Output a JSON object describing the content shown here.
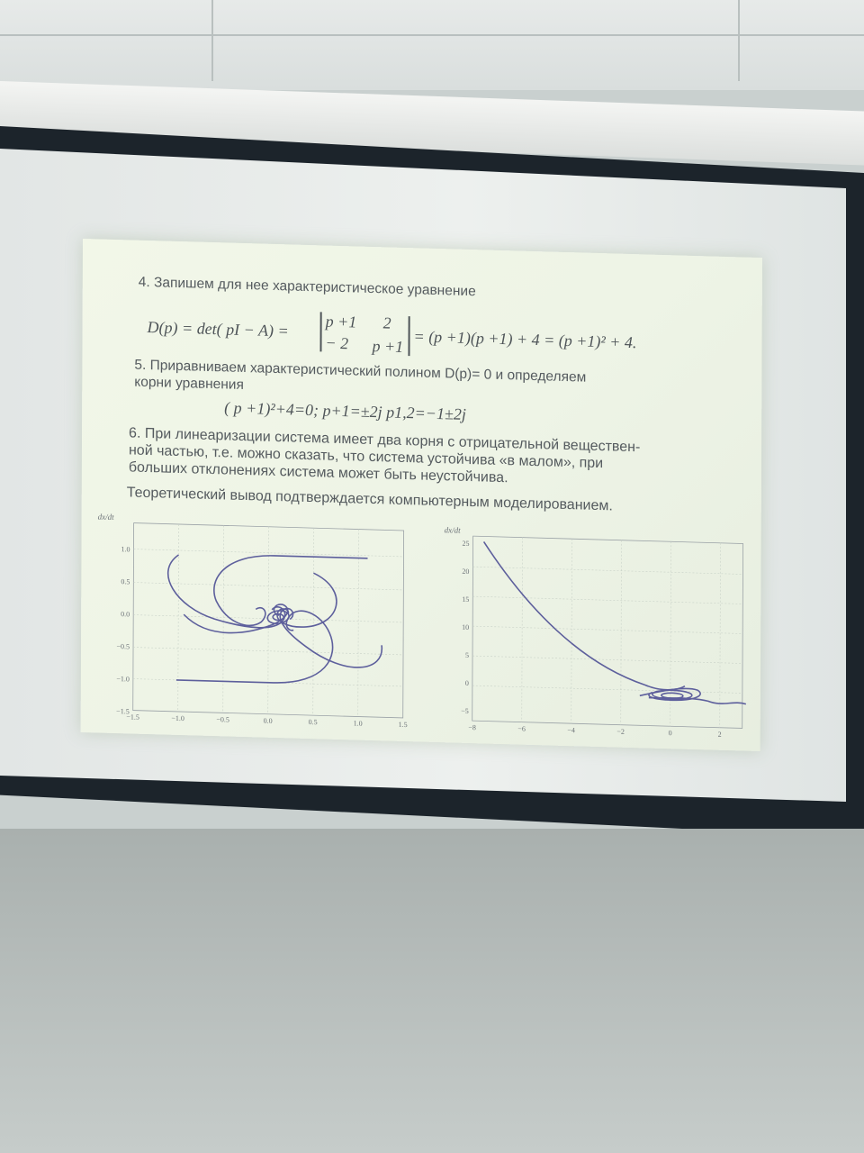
{
  "slide": {
    "heading_4": "4. Запишем для нее характеристическое уравнение",
    "formula_d": {
      "lhs": "D(p) = det( pI − A) =",
      "m11": "p +1",
      "m12": "2",
      "m21": "− 2",
      "m22": "p +1",
      "rhs": "= (p +1)(p +1) + 4 = (p +1)² + 4."
    },
    "text_5_line1": "5. Приравниваем характеристический полином D(p)= 0 и определяем",
    "text_5_line2": "корни уравнения",
    "equation_roots": "( p +1)²+4=0;  p+1=±2j   p1,2=−1±2j",
    "text_6_line1": "6. При линеаризации система имеет два корня с отрицательной веществен-",
    "text_6_line2": "ной частью, т.е. можно сказать, что система устойчива «в малом», при",
    "text_6_line3": "больших отклонениях система может быть неустойчива.",
    "conclusion": "Теоретический вывод подтверждается компьютерным моделированием."
  },
  "plots": {
    "left": {
      "ylabel": "dx/dt",
      "xticks": [
        "−1.5",
        "−1.0",
        "−0.5",
        "0.0",
        "0.5",
        "1.0",
        "1.5"
      ],
      "yticks": [
        "1.0",
        "0.5",
        "0.0",
        "−0.5",
        "−1.0",
        "−1.5"
      ]
    },
    "right": {
      "ylabel": "dx/dt",
      "xticks": [
        "−8",
        "−6",
        "−4",
        "−2",
        "0",
        "2"
      ],
      "yticks": [
        "25",
        "20",
        "15",
        "10",
        "5",
        "0",
        "−5"
      ]
    }
  },
  "colors": {
    "curve": "#5d5f9c",
    "slide_bg": "#eef4e6",
    "text": "#555b5f",
    "screen_frame": "#1c242b"
  }
}
